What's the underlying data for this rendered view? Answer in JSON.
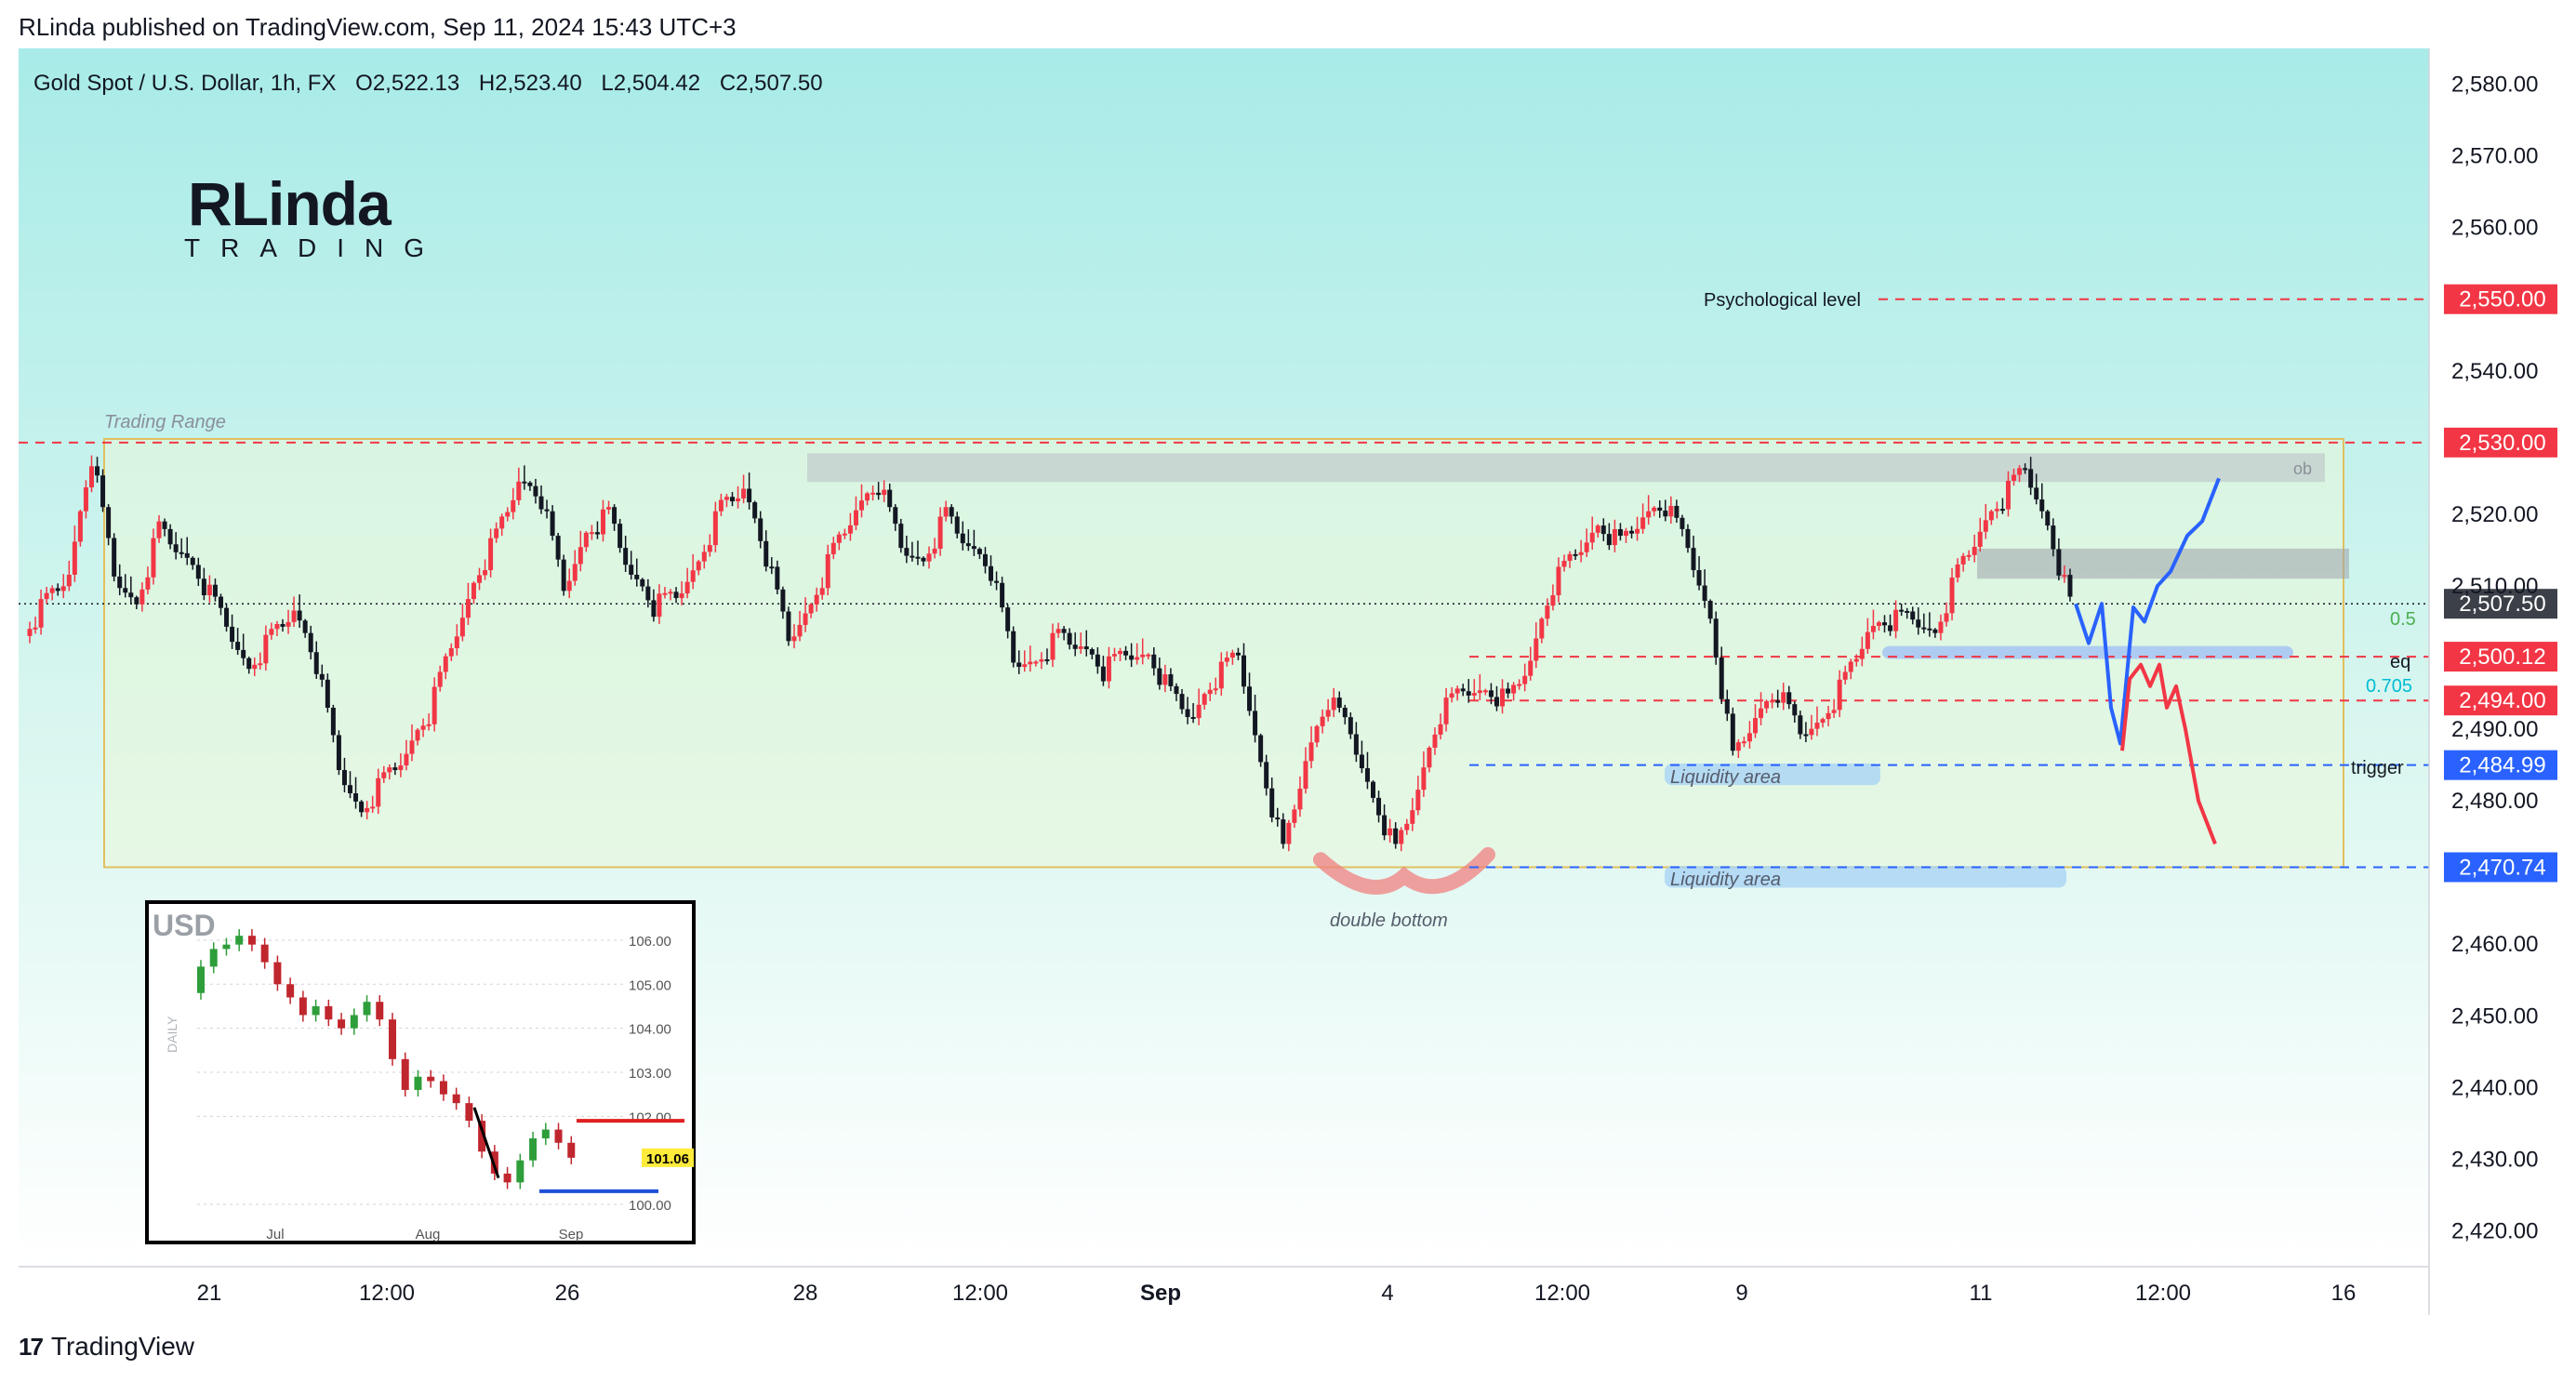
{
  "header": {
    "published": "RLinda published on TradingView.com, Sep 11, 2024 15:43 UTC+3"
  },
  "footer": {
    "brand": "TradingView"
  },
  "logo": {
    "word_top": "RLinda",
    "word_bottom": "TRADING"
  },
  "colors": {
    "bull": "#f23645",
    "bear": "#131722",
    "accent_red": "#f23645",
    "accent_blue": "#2962ff",
    "cyan": "#00bcd4",
    "green": "#4caf50",
    "bg_top": "#a8ebe8",
    "bg_bottom": "#ffffff"
  },
  "chart_data": [
    {
      "type": "candlestick",
      "title": "Gold Spot / U.S. Dollar, 1h, FX",
      "ohlc": {
        "open": "O2,522.13",
        "high": "H2,523.40",
        "low": "L2,504.42",
        "close": "C2,507.50"
      },
      "ylim": [
        2415,
        2585
      ],
      "y_ticks": [
        "2,580.00",
        "2,570.00",
        "2,560.00",
        "2,540.00",
        "2,520.00",
        "2,510.00",
        "2,490.00",
        "2,480.00",
        "2,460.00",
        "2,450.00",
        "2,440.00",
        "2,430.00",
        "2,420.00"
      ],
      "x_ticks": [
        "21",
        "12:00",
        "26",
        "28",
        "12:00",
        "Sep",
        "4",
        "12:00",
        "9",
        "11",
        "12:00",
        "16"
      ],
      "key_prices": [
        {
          "value": 2550.0,
          "label": "2,550.00",
          "style": "red"
        },
        {
          "value": 2530.0,
          "label": "2,530.00",
          "style": "red"
        },
        {
          "value": 2507.5,
          "label": "2,507.50",
          "style": "dark"
        },
        {
          "value": 2500.12,
          "label": "2,500.12",
          "style": "red"
        },
        {
          "value": 2494.0,
          "label": "2,494.00",
          "style": "red"
        },
        {
          "value": 2484.99,
          "label": "2,484.99",
          "style": "blue"
        },
        {
          "value": 2470.74,
          "label": "2,470.74",
          "style": "blue"
        }
      ],
      "annotations": {
        "trading_range": "Trading Range",
        "psychological": "Psychological level",
        "ob": "ob",
        "fib_05": "0.5",
        "eq": "eq",
        "fib_0705": "0.705",
        "trigger": "trigger",
        "liquidity_1": "Liquidity area",
        "liquidity_2": "Liquidity area",
        "double_bottom": "double bottom"
      },
      "scenarios": {
        "bullish_target": 2525,
        "bearish_target": 2474
      },
      "price_path": [
        2503,
        2508,
        2512,
        2528,
        2512,
        2507,
        2518,
        2515,
        2510,
        2505,
        2498,
        2503,
        2507,
        2499,
        2485,
        2478,
        2483,
        2487,
        2492,
        2502,
        2510,
        2517,
        2525,
        2522,
        2510,
        2517,
        2520,
        2512,
        2507,
        2509,
        2513,
        2521,
        2524,
        2514,
        2503,
        2507,
        2515,
        2521,
        2524,
        2516,
        2513,
        2520,
        2516,
        2512,
        2500,
        2499,
        2503,
        2502,
        2498,
        2501,
        2500,
        2495,
        2492,
        2497,
        2501,
        2485,
        2473,
        2486,
        2494,
        2490,
        2480,
        2473,
        2482,
        2492,
        2496,
        2495,
        2494,
        2500,
        2510,
        2515,
        2518,
        2516,
        2520,
        2521,
        2516,
        2505,
        2486,
        2492,
        2495,
        2490,
        2491,
        2497,
        2504,
        2505,
        2506,
        2503,
        2512,
        2518,
        2522,
        2527,
        2518,
        2507.5
      ]
    },
    {
      "type": "candlestick",
      "title": "USD",
      "y_axis_label": "DAILY",
      "last_price": "101.06",
      "ylim": [
        99.6,
        106.4
      ],
      "y_ticks": [
        "106.00",
        "105.00",
        "104.00",
        "103.00",
        "102.00",
        "100.00"
      ],
      "x_ticks": [
        "Jul",
        "Aug",
        "Sep"
      ],
      "levels": {
        "resistance": 101.9,
        "support": 100.3
      },
      "price_path": [
        104.8,
        105.4,
        105.8,
        105.9,
        106.1,
        105.9,
        105.5,
        105.0,
        104.7,
        104.3,
        104.5,
        104.2,
        104.0,
        104.3,
        104.6,
        104.2,
        103.3,
        102.6,
        102.9,
        102.8,
        102.5,
        102.3,
        101.9,
        101.2,
        100.7,
        100.5,
        101.0,
        101.5,
        101.7,
        101.4,
        101.06
      ]
    }
  ]
}
